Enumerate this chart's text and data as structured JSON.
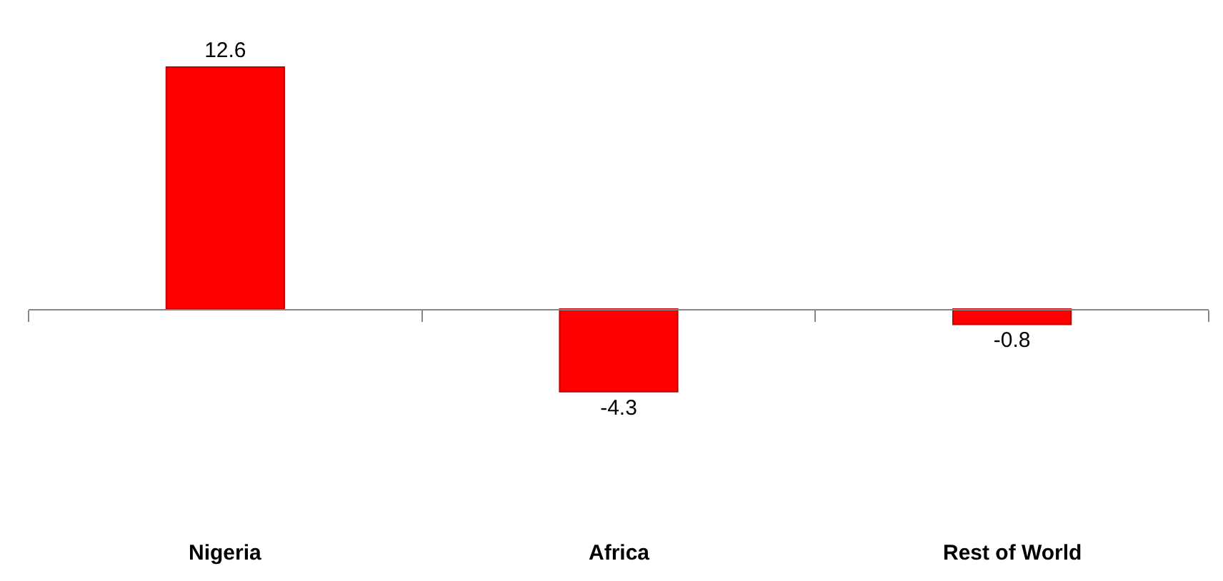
{
  "chart_data": {
    "type": "bar",
    "categories": [
      "Nigeria",
      "Africa",
      "Rest of World"
    ],
    "values": [
      12.6,
      -4.3,
      -0.8
    ],
    "color": "#ff0000",
    "data_labels": true
  }
}
